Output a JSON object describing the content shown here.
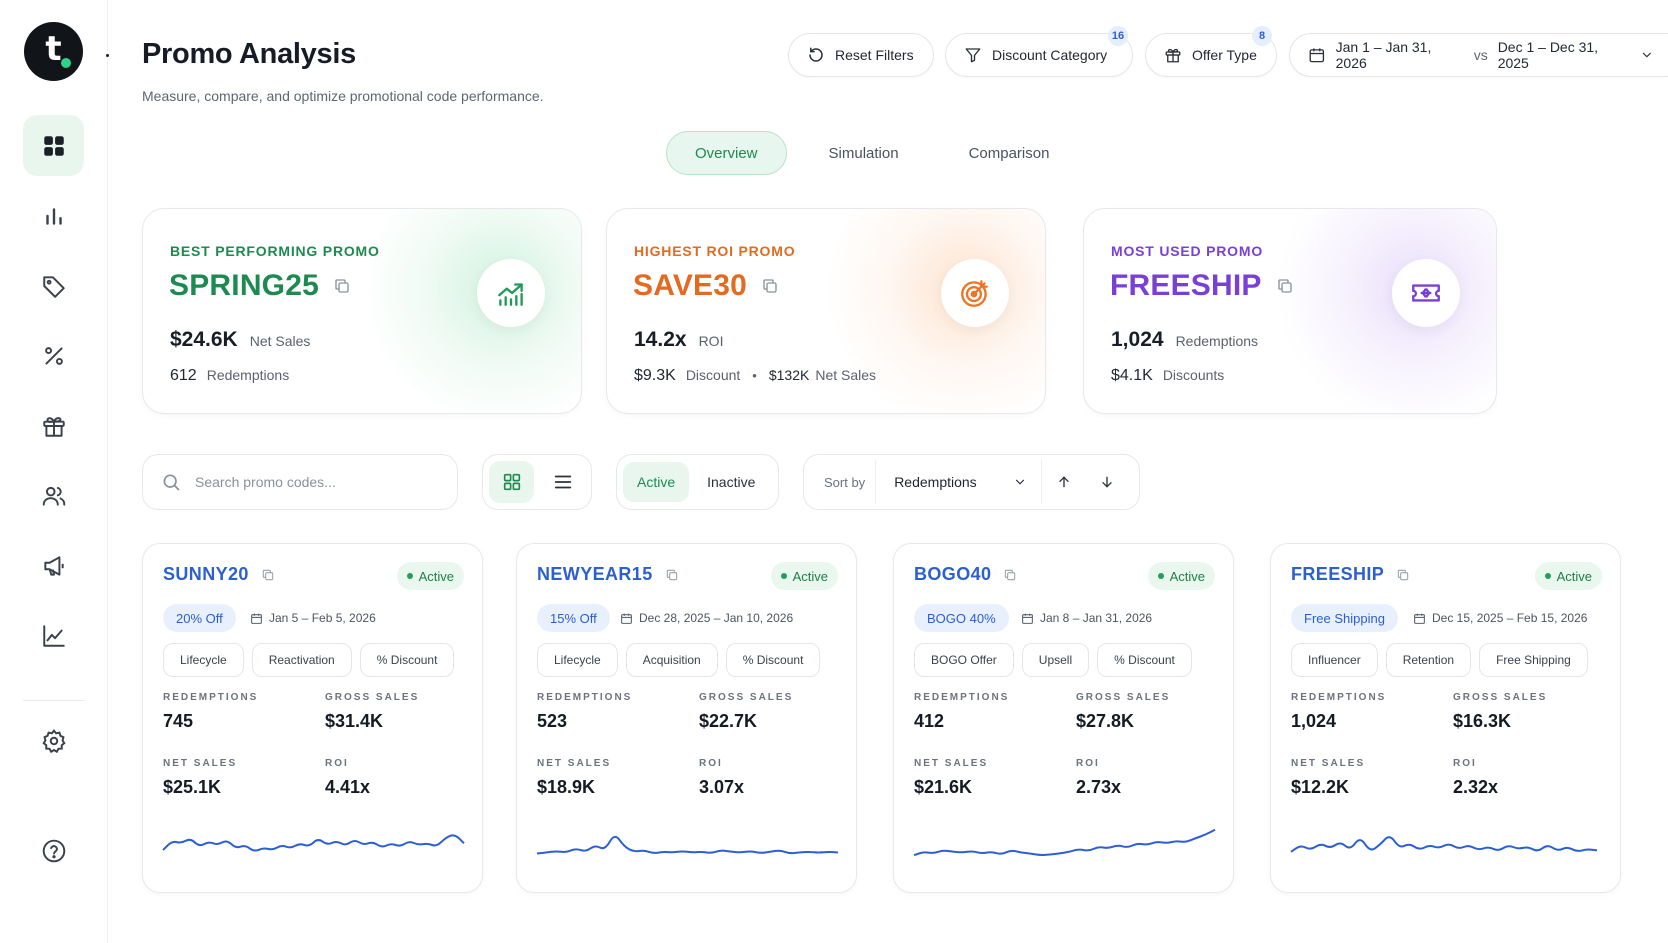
{
  "app": {
    "logo_letter": "t",
    "title": "Promo Analysis",
    "subtitle": "Measure, compare, and optimize promotional code performance."
  },
  "colors": {
    "brand_green": "#1d8a4f",
    "accent_blue": "#2c5fd0",
    "roi_orange": "#e36a1e",
    "used_purple": "#7a3fd6"
  },
  "sidebar": {
    "items": [
      {
        "icon": "dashboard-grid-icon",
        "active": true
      },
      {
        "icon": "bar-chart-icon",
        "active": false
      },
      {
        "icon": "tag-icon",
        "active": false
      },
      {
        "icon": "percent-icon",
        "active": false
      },
      {
        "icon": "gift-icon",
        "active": false
      },
      {
        "icon": "users-icon",
        "active": false
      },
      {
        "icon": "megaphone-icon",
        "active": false
      },
      {
        "icon": "line-chart-icon",
        "active": false
      },
      {
        "icon": "settings-gear-icon",
        "active": false
      },
      {
        "icon": "help-icon",
        "active": false
      }
    ]
  },
  "header": {
    "reset_label": "Reset Filters",
    "discount_category_label": "Discount Category",
    "discount_category_count": "16",
    "offer_type_label": "Offer Type",
    "offer_type_count": "8",
    "date_range": "Jan 1 – Jan 31, 2026",
    "vs_label": "vs",
    "compare_range": "Dec 1 – Dec 31, 2025"
  },
  "tabs": [
    "Overview",
    "Simulation",
    "Comparison"
  ],
  "highlights": [
    {
      "label": "BEST PERFORMING PROMO",
      "code": "SPRING25",
      "primary_value": "$24.6K",
      "primary_label": "Net Sales",
      "secondary_value": "612",
      "secondary_label": "Redemptions",
      "icon": "trending-chart-icon"
    },
    {
      "label": "HIGHEST ROI PROMO",
      "code": "SAVE30",
      "primary_value": "14.2x",
      "primary_label": "ROI",
      "secondary_value": "$9.3K",
      "secondary_label": "Discount",
      "separator": "•",
      "tertiary_value": "$132K",
      "tertiary_label": "Net Sales",
      "icon": "target-icon"
    },
    {
      "label": "MOST USED PROMO",
      "code": "FREESHIP",
      "primary_value": "1,024",
      "primary_label": "Redemptions",
      "secondary_value": "$4.1K",
      "secondary_label": "Discounts",
      "icon": "ticket-icon"
    }
  ],
  "toolbar": {
    "search_placeholder": "Search promo codes...",
    "active_label": "Active",
    "inactive_label": "Inactive",
    "sort_label": "Sort by",
    "sort_value": "Redemptions"
  },
  "metric_labels": {
    "redemptions": "REDEMPTIONS",
    "gross_sales": "GROSS SALES",
    "net_sales": "NET SALES",
    "roi": "ROI"
  },
  "promos": [
    {
      "code": "SUNNY20",
      "status": "Active",
      "offer": "20% Off",
      "dates": "Jan 5 – Feb 5, 2026",
      "tags": [
        "Lifecycle",
        "Reactivation",
        "% Discount"
      ],
      "redemptions": "745",
      "gross_sales": "$31.4K",
      "net_sales": "$25.1K",
      "roi": "4.41x",
      "trend": [
        0.35,
        0.62,
        0.55,
        0.7,
        0.45,
        0.6,
        0.5,
        0.65,
        0.4,
        0.5,
        0.3,
        0.42,
        0.35,
        0.5,
        0.4,
        0.55,
        0.45,
        0.7,
        0.5,
        0.62,
        0.48,
        0.66,
        0.5,
        0.6,
        0.42,
        0.55,
        0.45,
        0.62,
        0.5,
        0.55,
        0.45,
        0.72,
        0.82,
        0.55
      ]
    },
    {
      "code": "NEWYEAR15",
      "status": "Active",
      "offer": "15% Off",
      "dates": "Dec 28, 2025 – Jan 10, 2026",
      "tags": [
        "Lifecycle",
        "Acquisition",
        "% Discount"
      ],
      "redemptions": "523",
      "gross_sales": "$22.7K",
      "net_sales": "$18.9K",
      "roi": "3.07x",
      "trend": [
        0.25,
        0.28,
        0.32,
        0.28,
        0.4,
        0.3,
        0.5,
        0.35,
        0.85,
        0.45,
        0.3,
        0.35,
        0.25,
        0.3,
        0.28,
        0.32,
        0.28,
        0.3,
        0.26,
        0.35,
        0.3,
        0.28,
        0.32,
        0.26,
        0.3,
        0.35,
        0.25,
        0.28,
        0.3,
        0.27,
        0.3,
        0.28
      ]
    },
    {
      "code": "BOGO40",
      "status": "Active",
      "offer": "BOGO 40%",
      "dates": "Jan 8 – Jan 31, 2026",
      "tags": [
        "BOGO Offer",
        "Upsell",
        "% Discount"
      ],
      "redemptions": "412",
      "gross_sales": "$27.8K",
      "net_sales": "$21.6K",
      "roi": "2.73x",
      "trend": [
        0.2,
        0.3,
        0.25,
        0.35,
        0.3,
        0.28,
        0.32,
        0.25,
        0.3,
        0.22,
        0.35,
        0.28,
        0.25,
        0.2,
        0.22,
        0.25,
        0.3,
        0.38,
        0.32,
        0.45,
        0.4,
        0.5,
        0.42,
        0.55,
        0.5,
        0.6,
        0.55,
        0.62,
        0.58,
        0.7,
        0.8,
        0.95
      ]
    },
    {
      "code": "FREESHIP",
      "status": "Active",
      "offer": "Free Shipping",
      "dates": "Dec 15, 2025 – Feb 15, 2026",
      "tags": [
        "Influencer",
        "Retention",
        "Free Shipping"
      ],
      "redemptions": "1,024",
      "gross_sales": "$16.3K",
      "net_sales": "$12.2K",
      "roi": "2.32x",
      "trend": [
        0.3,
        0.5,
        0.35,
        0.55,
        0.4,
        0.6,
        0.35,
        0.75,
        0.3,
        0.5,
        0.82,
        0.4,
        0.55,
        0.35,
        0.5,
        0.4,
        0.55,
        0.38,
        0.5,
        0.35,
        0.45,
        0.32,
        0.5,
        0.38,
        0.45,
        0.3,
        0.52,
        0.32,
        0.45,
        0.3,
        0.38,
        0.34
      ]
    }
  ]
}
